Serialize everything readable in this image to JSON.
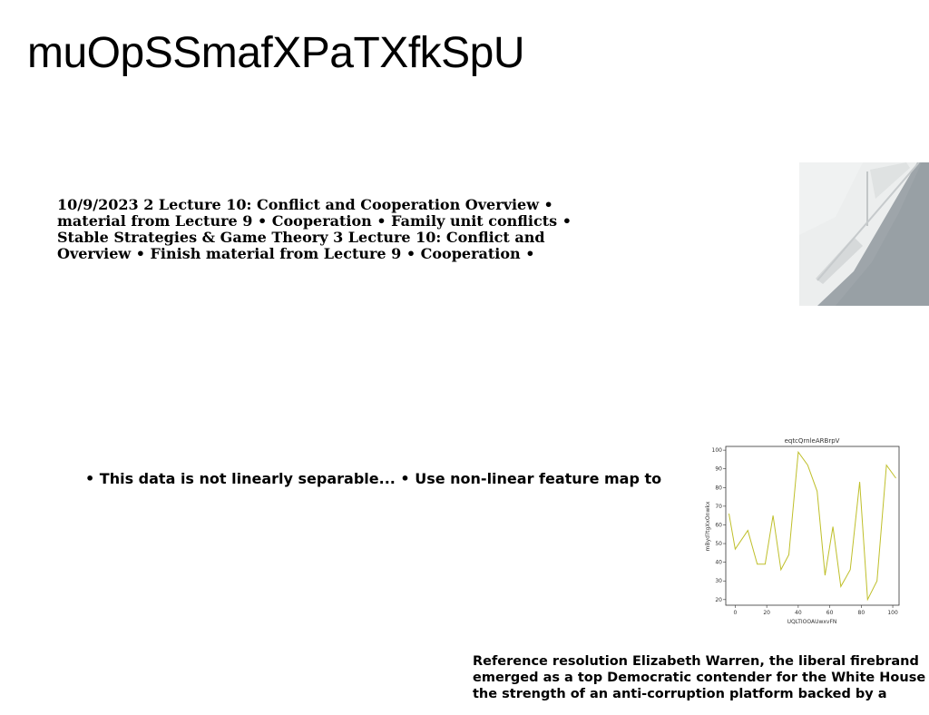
{
  "title": "muOpSSmafXPaTXfkSpU",
  "text_block_1": {
    "lines": [
      "10/9/2023 2 Lecture 10: Conflict and Cooperation Overview •",
      "material from Lecture 9 • Cooperation • Family unit conflicts •",
      "Stable Strategies & Game Theory 3 Lecture 10: Conflict and",
      "Overview • Finish material from Lecture 9 • Cooperation •"
    ]
  },
  "text_block_2": {
    "text": "• This data is not linearly separable... • Use non-linear feature map to"
  },
  "text_block_3": {
    "lines": [
      "Reference resolution Elizabeth Warren, the liberal firebrand",
      "emerged as a top Democratic contender for the White House",
      "the strength of an anti-corruption platform backed by a"
    ]
  },
  "chart_data": {
    "type": "line",
    "title": "eqtcQrnleARBrpV",
    "xlabel": "UQLTIOOAUwxvFN",
    "ylabel": "mByd?tgXxOnwkx",
    "xlim": [
      -6,
      104
    ],
    "ylim": [
      17,
      102
    ],
    "xticks": [
      0,
      20,
      40,
      60,
      80,
      100
    ],
    "yticks": [
      20,
      30,
      40,
      50,
      60,
      70,
      80,
      90,
      100
    ],
    "grid": false,
    "line_color": "#bfbf2a",
    "x": [
      -4,
      0,
      8,
      14,
      19,
      24,
      29,
      34,
      40,
      46,
      52,
      57,
      62,
      67,
      73,
      79,
      84,
      90,
      96,
      102
    ],
    "y": [
      66,
      47,
      57,
      39,
      39,
      65,
      36,
      44,
      99,
      92,
      78,
      33,
      59,
      27,
      36,
      83,
      20,
      30,
      92,
      85
    ]
  },
  "image": {
    "subject": "corner of white wall meeting grey carpet floor",
    "colors": {
      "wall": "#e9ebeb",
      "floor": "#9aa1a6",
      "shadow": "#c9cdce"
    }
  }
}
